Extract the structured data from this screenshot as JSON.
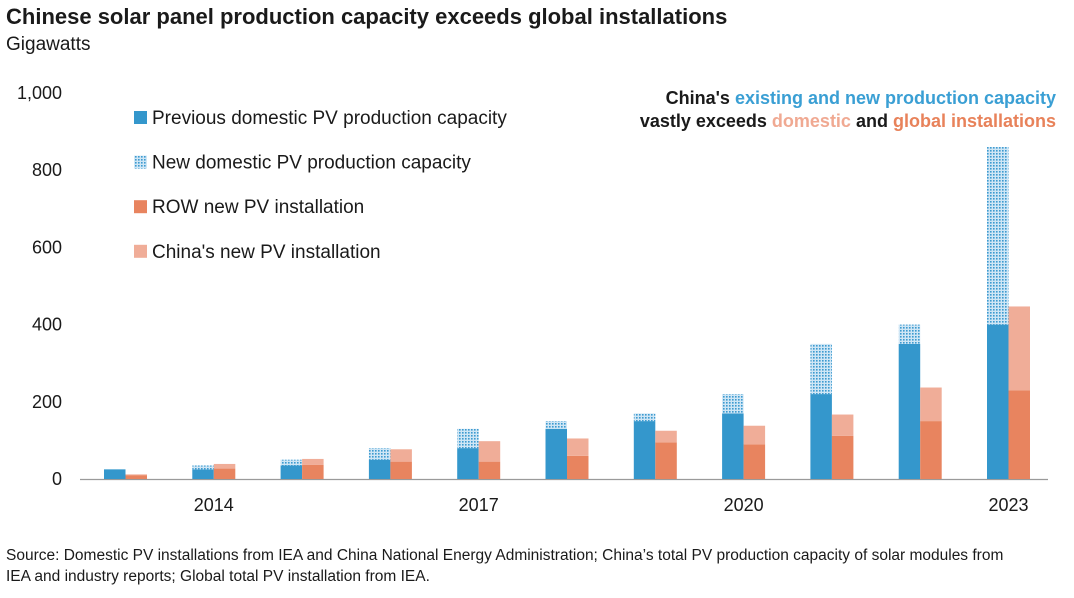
{
  "title": "Chinese solar panel production capacity exceeds global installations",
  "subtitle": "Gigawatts",
  "source": "Source: Domestic PV installations from IEA and China National Energy Administration; China’s total PV production capacity of solar modules from IEA and industry reports; Global total PV installation from IEA.",
  "annotation": {
    "line1": [
      {
        "text": "China's ",
        "color": "#1a1a1a"
      },
      {
        "text": "existing and new production capacity",
        "color": "#3a9fd4"
      }
    ],
    "line2": [
      {
        "text": "vastly exceeds ",
        "color": "#1a1a1a"
      },
      {
        "text": "domestic",
        "color": "#f0a992"
      },
      {
        "text": " and ",
        "color": "#1a1a1a"
      },
      {
        "text": "global installations",
        "color": "#e8825a"
      }
    ]
  },
  "colors": {
    "previous_capacity": "#3497cc",
    "new_capacity_pattern": "#9cc9e6",
    "row_installation": "#e8845f",
    "china_installation": "#f0ad98"
  },
  "chart_data": {
    "type": "bar",
    "stacked": true,
    "grouped": true,
    "years": [
      2013,
      2014,
      2015,
      2016,
      2017,
      2018,
      2019,
      2020,
      2021,
      2022,
      2023
    ],
    "x_tick_labels": [
      {
        "year": 2014,
        "label": "2014"
      },
      {
        "year": 2017,
        "label": "2017"
      },
      {
        "year": 2020,
        "label": "2020"
      },
      {
        "year": 2023,
        "label": "2023"
      }
    ],
    "ylim": [
      0,
      1000
    ],
    "y_ticks": [
      0,
      200,
      400,
      600,
      800,
      1000
    ],
    "y_tick_labels": [
      "0",
      "200",
      "400",
      "600",
      "800",
      "1,000"
    ],
    "legend_position": "top-left",
    "grid": false,
    "series": [
      {
        "key": "previous",
        "name": "Previous domestic PV production capacity",
        "group": "capacity",
        "values": [
          25,
          25,
          35,
          50,
          80,
          130,
          150,
          170,
          220,
          350,
          400
        ]
      },
      {
        "key": "new",
        "name": "New domestic PV production capacity",
        "group": "capacity",
        "pattern": "dotted",
        "values": [
          0,
          10,
          15,
          30,
          50,
          20,
          20,
          50,
          130,
          50,
          460
        ]
      },
      {
        "key": "row",
        "name": "ROW new PV installation",
        "group": "installation",
        "values": [
          10,
          27,
          37,
          45,
          45,
          60,
          95,
          90,
          112,
          150,
          230
        ]
      },
      {
        "key": "china",
        "name": "China's new PV installation",
        "group": "installation",
        "values": [
          2,
          12,
          15,
          32,
          53,
          45,
          30,
          48,
          55,
          87,
          217
        ]
      }
    ]
  }
}
